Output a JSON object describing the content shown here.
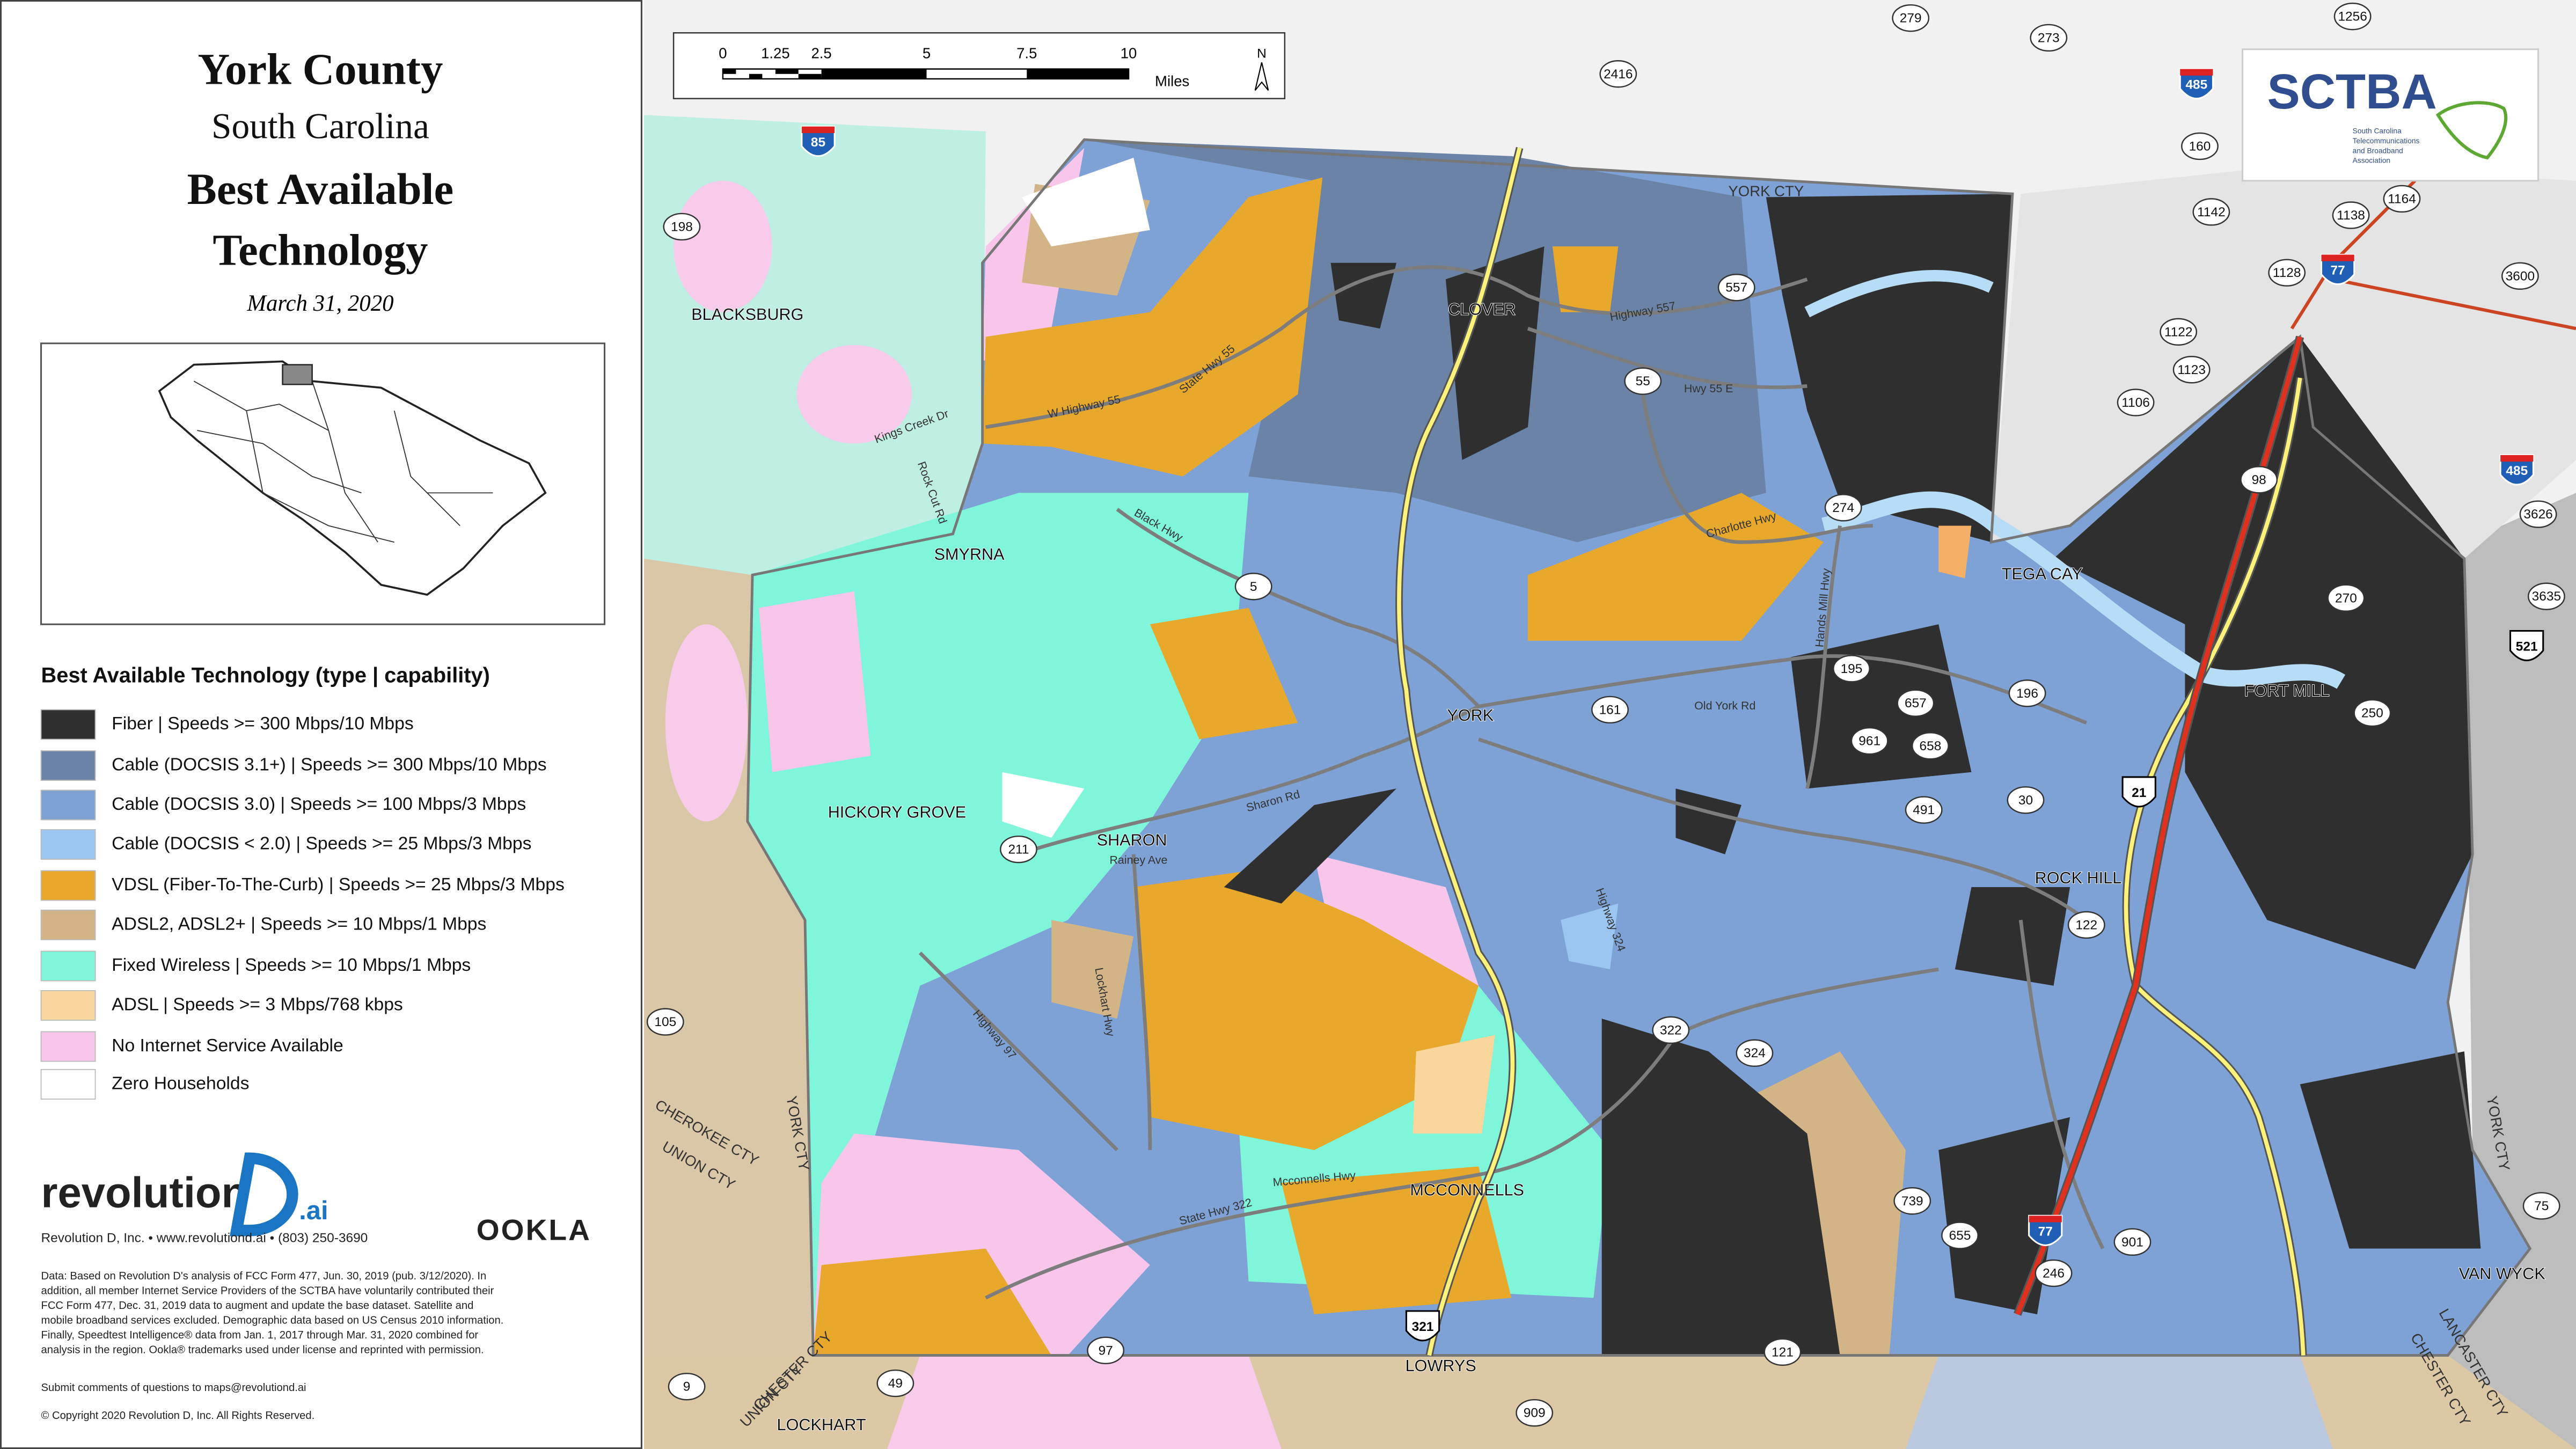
{
  "header": {
    "title": "York County",
    "subtitle": "South Carolina",
    "heading_1": "Best Available",
    "heading_2": "Technology",
    "date": "March 31, 2020"
  },
  "legend": {
    "title": "Best Available Technology (type | capability)",
    "items": [
      {
        "label": "Fiber | Speeds >= 300 Mbps/10 Mbps",
        "color": "#2f2f2f"
      },
      {
        "label": "Cable (DOCSIS 3.1+) | Speeds >= 300 Mbps/10 Mbps",
        "color": "#6a83a6"
      },
      {
        "label": "Cable (DOCSIS 3.0) | Speeds >= 100 Mbps/3 Mbps",
        "color": "#7ea2d5"
      },
      {
        "label": "Cable (DOCSIS < 2.0) | Speeds >= 25 Mbps/3 Mbps",
        "color": "#9cc6f2"
      },
      {
        "label": "VDSL (Fiber-To-The-Curb) | Speeds >= 25 Mbps/3 Mbps",
        "color": "#e8a82c"
      },
      {
        "label": "ADSL2, ADSL2+ | Speeds >= 10 Mbps/1 Mbps",
        "color": "#d3b486"
      },
      {
        "label": "Fixed Wireless | Speeds >= 10 Mbps/1 Mbps",
        "color": "#7ff5d9"
      },
      {
        "label": "ADSL | Speeds >= 3 Mbps/768 kbps",
        "color": "#f9d79c"
      },
      {
        "label": "No Internet Service Available",
        "color": "#f8c6ea"
      },
      {
        "label": "Zero Households",
        "color": "#ffffff"
      }
    ]
  },
  "credits": {
    "brand": "revolution",
    "brand_suffix": ".ai",
    "contact": "Revolution D, Inc. • www.revolutiond.ai • (803) 250-3690",
    "partner": "OOKLA",
    "data_note": [
      "Data: Based on Revolution D's analysis of FCC Form 477, Jun. 30, 2019 (pub. 3/12/2020). In",
      "addition, all member Internet Service Providers of the SCTBA have voluntarily contributed their",
      "FCC Form 477, Dec. 31, 2019 data to augment and update the base dataset. Satellite and",
      "mobile broadband services excluded. Demographic data based on US Census 2010 information.",
      "Finally, Speedtest Intelligence® data from Jan. 1, 2017 through Mar. 31, 2020 combined for",
      "analysis in the region. Ookla® trademarks used under license and reprinted with permission."
    ],
    "submit": "Submit comments of questions to maps@revolutiond.ai",
    "copyright": "© Copyright 2020 Revolution D, Inc. All Rights Reserved."
  },
  "scale_bar": {
    "ticks": [
      "0",
      "1.25",
      "2.5",
      "5",
      "7.5",
      "10"
    ],
    "unit": "Miles",
    "north": "N"
  },
  "logo": {
    "name": "SCTBA",
    "full_1": "South Carolina",
    "full_2": "Telecommunications",
    "full_3": "and Broadband",
    "full_4": "Association"
  },
  "places": [
    "BLACKSBURG",
    "CLOVER",
    "SMYRNA",
    "YORK",
    "HICKORY GROVE",
    "SHARON",
    "TEGA CAY",
    "FORT MILL",
    "ROCK HILL",
    "MCCONNELLS",
    "LOWRYS",
    "LOCKHART",
    "VAN WYCK"
  ],
  "counties": [
    "YORK CTY",
    "YORK CTY",
    "CHEROKEE CTY",
    "UNION CTY",
    "CHESTER CTY",
    "UNION CTY",
    "CHESTER CTY",
    "LANCASTER CTY",
    "YORK CTY"
  ],
  "routes": [
    "2416",
    "279",
    "273",
    "1256",
    "198",
    "557",
    "55",
    "274",
    "5",
    "161",
    "195",
    "657",
    "196",
    "961",
    "658",
    "491",
    "30",
    "211",
    "122",
    "322",
    "324",
    "739",
    "655",
    "246",
    "901",
    "105",
    "97",
    "49",
    "9",
    "121",
    "909",
    "160",
    "1142",
    "1138",
    "1164",
    "1128",
    "1122",
    "1123",
    "1106",
    "3600",
    "98",
    "270",
    "250",
    "3626",
    "3635",
    "75"
  ],
  "shields": [
    "521",
    "21",
    "321",
    "77",
    "77",
    "485",
    "485",
    "85"
  ],
  "roads": [
    "W Highway 55",
    "State Hwy 55",
    "Black Hwy",
    "Sharon Rd",
    "Rainey Ave",
    "Lockhart Hwy",
    "Highway 97",
    "Mcconnells Hwy",
    "State Hwy 322",
    "Old York Rd",
    "Charlotte Hwy",
    "Hwy 55 E",
    "Highway 557",
    "Kings Creek Dr",
    "Rock Cut Rd",
    "Hands Mill Hwy",
    "Highway 324"
  ]
}
